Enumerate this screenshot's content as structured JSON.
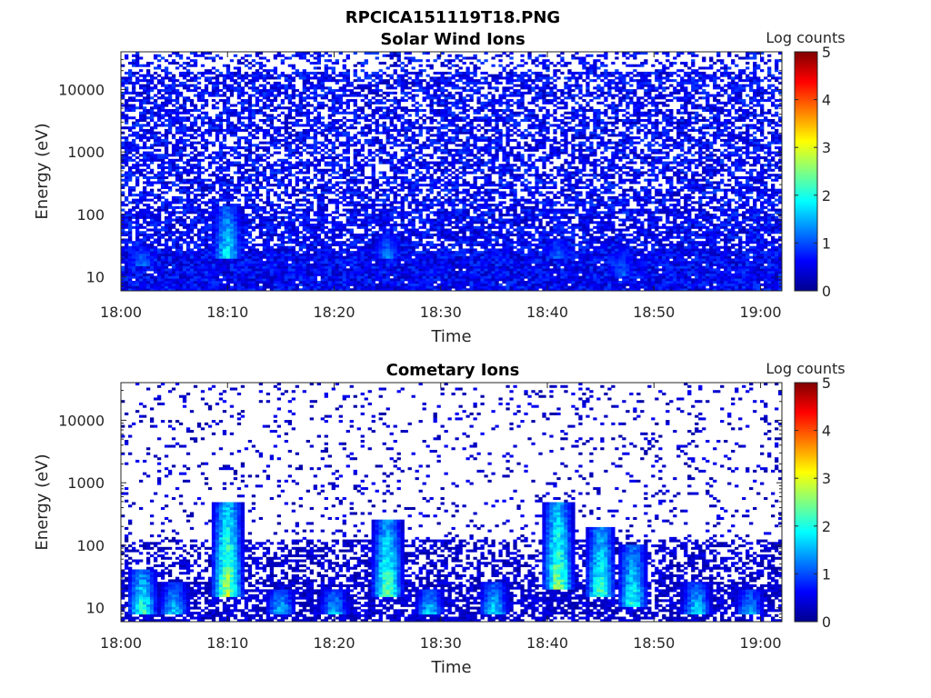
{
  "figure_title": "RPCICA151119T18.PNG",
  "chart_data": [
    {
      "type": "heatmap",
      "title": "Solar Wind Ions",
      "xlabel": "Time",
      "ylabel": "Energy (eV)",
      "x_ticks": [
        "18:00",
        "18:10",
        "18:20",
        "18:30",
        "18:40",
        "18:50",
        "19:00"
      ],
      "x_range": [
        "18:00",
        "19:02"
      ],
      "y_scale": "log",
      "y_ticks": [
        "10",
        "100",
        "1000",
        "10000"
      ],
      "y_range": [
        6,
        40000
      ],
      "colorbar": {
        "label": "Log counts",
        "range": [
          0,
          5
        ],
        "ticks": [
          "0",
          "1",
          "2",
          "3",
          "4",
          "5"
        ],
        "colormap": "jet"
      },
      "density": 0.62,
      "background_level": 0.8,
      "features": [
        {
          "time": "18:02",
          "energy_min": 15,
          "energy_max": 30,
          "level": 1.3
        },
        {
          "time": "18:10",
          "energy_min": 20,
          "energy_max": 130,
          "level": 2.0
        },
        {
          "time": "18:25",
          "energy_min": 20,
          "energy_max": 50,
          "level": 1.4
        },
        {
          "time": "18:41",
          "energy_min": 20,
          "energy_max": 40,
          "level": 1.3
        },
        {
          "time": "18:47",
          "energy_min": 10,
          "energy_max": 30,
          "level": 1.2
        }
      ]
    },
    {
      "type": "heatmap",
      "title": "Cometary Ions",
      "xlabel": "Time",
      "ylabel": "Energy (eV)",
      "x_ticks": [
        "18:00",
        "18:10",
        "18:20",
        "18:30",
        "18:40",
        "18:50",
        "19:00"
      ],
      "x_range": [
        "18:00",
        "19:02"
      ],
      "y_scale": "log",
      "y_ticks": [
        "10",
        "100",
        "1000",
        "10000"
      ],
      "y_range": [
        6,
        40000
      ],
      "colorbar": {
        "label": "Log counts",
        "range": [
          0,
          5
        ],
        "ticks": [
          "0",
          "1",
          "2",
          "3",
          "4",
          "5"
        ],
        "colormap": "jet"
      },
      "density": 0.35,
      "background_level": 0.5,
      "features": [
        {
          "time": "18:02",
          "energy_min": 8,
          "energy_max": 40,
          "level": 2.3
        },
        {
          "time": "18:05",
          "energy_min": 8,
          "energy_max": 25,
          "level": 1.8
        },
        {
          "time": "18:10",
          "energy_min": 15,
          "energy_max": 500,
          "level": 2.9
        },
        {
          "time": "18:15",
          "energy_min": 8,
          "energy_max": 20,
          "level": 1.8
        },
        {
          "time": "18:20",
          "energy_min": 8,
          "energy_max": 20,
          "level": 1.7
        },
        {
          "time": "18:25",
          "energy_min": 15,
          "energy_max": 250,
          "level": 2.6
        },
        {
          "time": "18:29",
          "energy_min": 8,
          "energy_max": 20,
          "level": 1.8
        },
        {
          "time": "18:35",
          "energy_min": 8,
          "energy_max": 25,
          "level": 1.9
        },
        {
          "time": "18:41",
          "energy_min": 20,
          "energy_max": 500,
          "level": 2.7
        },
        {
          "time": "18:45",
          "energy_min": 15,
          "energy_max": 200,
          "level": 2.4
        },
        {
          "time": "18:48",
          "energy_min": 10,
          "energy_max": 100,
          "level": 2.2
        },
        {
          "time": "18:54",
          "energy_min": 8,
          "energy_max": 25,
          "level": 1.9
        },
        {
          "time": "18:59",
          "energy_min": 8,
          "energy_max": 20,
          "level": 1.6
        }
      ]
    }
  ]
}
